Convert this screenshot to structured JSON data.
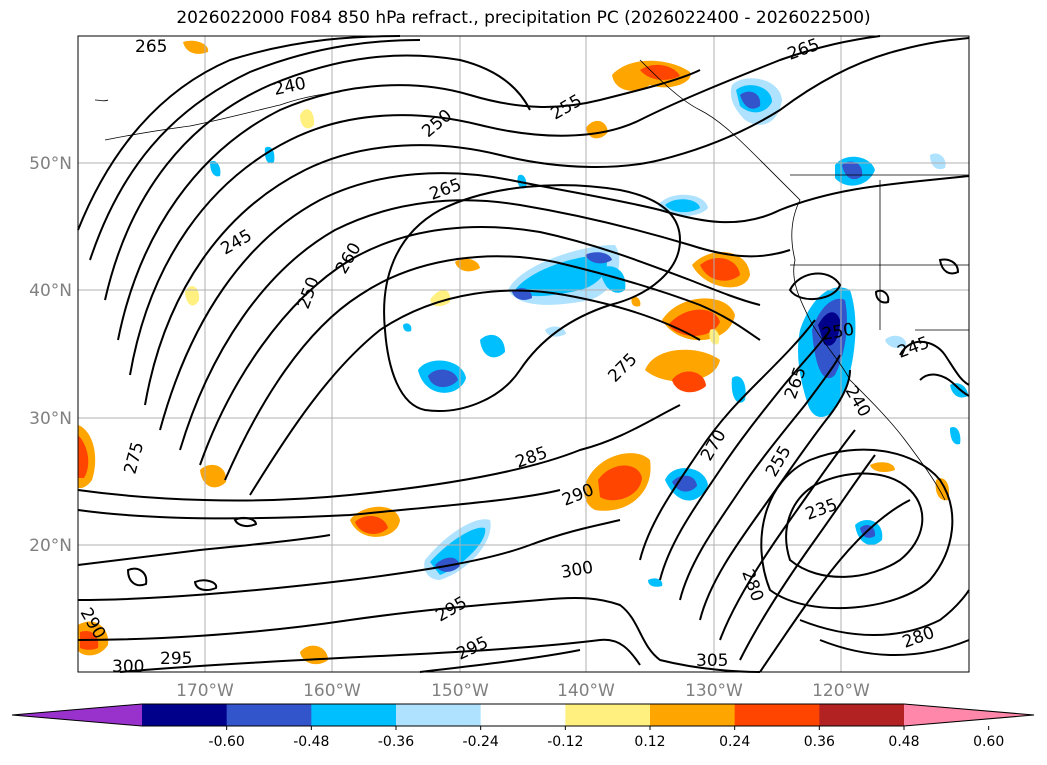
{
  "title": "2026022000 F084 850 hPa refract., precipitation PC (2026022400 - 2026022500)",
  "map": {
    "lat_labels": [
      "50°N",
      "40°N",
      "30°N",
      "20°N"
    ],
    "lon_labels": [
      "170°W",
      "160°W",
      "150°W",
      "140°W",
      "130°W",
      "120°W"
    ],
    "contour_labels": [
      "265",
      "240",
      "250",
      "255",
      "265",
      "245",
      "260",
      "250",
      "265",
      "275",
      "285",
      "290",
      "270",
      "265",
      "255",
      "250",
      "245",
      "240",
      "235",
      "280",
      "300",
      "295",
      "295",
      "290",
      "300",
      "295",
      "305",
      "280",
      "275"
    ]
  },
  "colorbar": {
    "ticks": [
      "-0.60",
      "-0.48",
      "-0.36",
      "-0.24",
      "-0.12",
      "0.12",
      "0.24",
      "0.36",
      "0.48",
      "0.60"
    ],
    "colors": [
      "#9932cc",
      "#00008b",
      "#3355cc",
      "#00bfff",
      "#aee2ff",
      "#ffffff",
      "#fff080",
      "#ffa500",
      "#ff4500",
      "#b22222",
      "#ff88aa"
    ]
  }
}
